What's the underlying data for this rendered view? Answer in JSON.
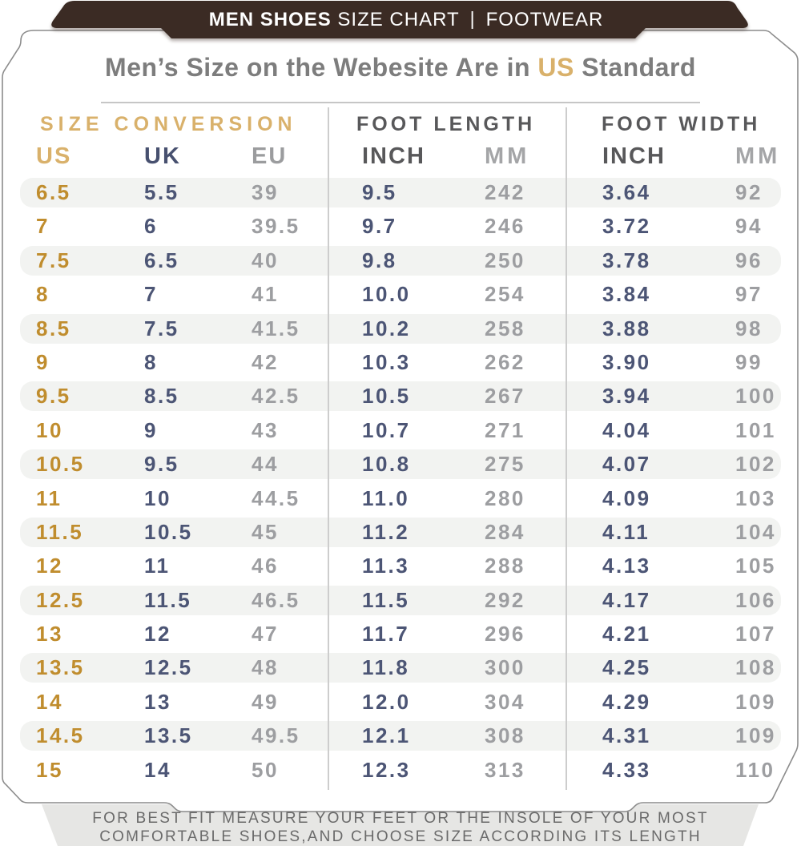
{
  "ribbon": {
    "bold": "MEN SHOES",
    "regular": "SIZE CHART",
    "separator": "|",
    "right": "FOOTWEAR"
  },
  "title": {
    "prefix": "Men’s Size on the Webesite Are in ",
    "highlight": "US",
    "suffix": " Standard"
  },
  "table": {
    "sections": [
      {
        "label": "SIZE CONVERSION"
      },
      {
        "label": "FOOT LENGTH"
      },
      {
        "label": "FOOT WIDTH"
      }
    ],
    "columns": [
      "US",
      "UK",
      "EU",
      "INCH",
      "MM",
      "INCH",
      "MM"
    ],
    "rows": [
      [
        "6.5",
        "5.5",
        "39",
        "9.5",
        "242",
        "3.64",
        "92"
      ],
      [
        "7",
        "6",
        "39.5",
        "9.7",
        "246",
        "3.72",
        "94"
      ],
      [
        "7.5",
        "6.5",
        "40",
        "9.8",
        "250",
        "3.78",
        "96"
      ],
      [
        "8",
        "7",
        "41",
        "10.0",
        "254",
        "3.84",
        "97"
      ],
      [
        "8.5",
        "7.5",
        "41.5",
        "10.2",
        "258",
        "3.88",
        "98"
      ],
      [
        "9",
        "8",
        "42",
        "10.3",
        "262",
        "3.90",
        "99"
      ],
      [
        "9.5",
        "8.5",
        "42.5",
        "10.5",
        "267",
        "3.94",
        "100"
      ],
      [
        "10",
        "9",
        "43",
        "10.7",
        "271",
        "4.04",
        "101"
      ],
      [
        "10.5",
        "9.5",
        "44",
        "10.8",
        "275",
        "4.07",
        "102"
      ],
      [
        "11",
        "10",
        "44.5",
        "11.0",
        "280",
        "4.09",
        "103"
      ],
      [
        "11.5",
        "10.5",
        "45",
        "11.2",
        "284",
        "4.11",
        "104"
      ],
      [
        "12",
        "11",
        "46",
        "11.3",
        "288",
        "4.13",
        "105"
      ],
      [
        "12.5",
        "11.5",
        "46.5",
        "11.5",
        "292",
        "4.17",
        "106"
      ],
      [
        "13",
        "12",
        "47",
        "11.7",
        "296",
        "4.21",
        "107"
      ],
      [
        "13.5",
        "12.5",
        "48",
        "11.8",
        "300",
        "4.25",
        "108"
      ],
      [
        "14",
        "13",
        "49",
        "12.0",
        "304",
        "4.29",
        "109"
      ],
      [
        "14.5",
        "13.5",
        "49.5",
        "12.1",
        "308",
        "4.31",
        "109"
      ],
      [
        "15",
        "14",
        "50",
        "12.3",
        "313",
        "4.33",
        "110"
      ]
    ]
  },
  "footer": {
    "line1": "FOR BEST FIT MEASURE YOUR FEET OR THE INSOLE OF YOUR MOST",
    "line2": "COMFORTABLE SHOES,AND CHOOSE SIZE ACCORDING ITS LENGTH"
  },
  "colors": {
    "brown": "#3b2b24",
    "goldLight": "#d9b16b",
    "goldDark": "#c08d2e",
    "navy": "#4c5575",
    "grayVal": "#9d9ea1",
    "headDark": "#58585a",
    "titleGray": "#7d7d7d",
    "band": "#f2f3f1",
    "footerBg": "#e6e6e4",
    "footerText": "#6a6a6a",
    "cardBorder": "#8c8c8c",
    "divider": "#cdcdcd",
    "underline": "#c6c6c6"
  }
}
